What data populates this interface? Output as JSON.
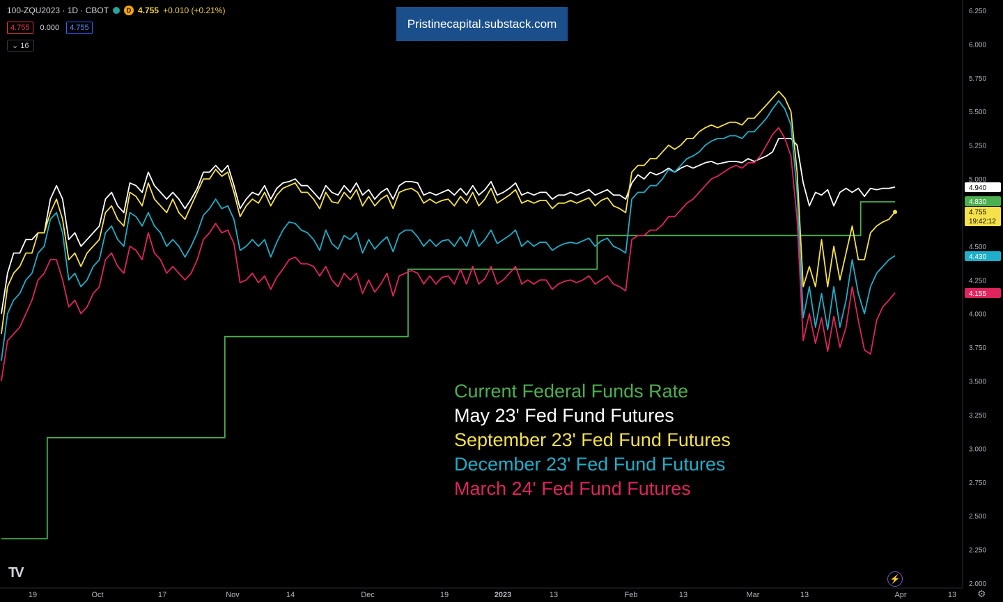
{
  "header": {
    "symbol": "100-ZQU2023 · 1D · CBOT",
    "exchange_badge": "D",
    "price": "4.755",
    "change": "+0.010 (+0.21%)",
    "bid": "4.755",
    "spread": "0.000",
    "ask": "4.755",
    "indicator_count": "16",
    "chevron": "⌄"
  },
  "watermark": {
    "text": "Pristinecapital.substack.com"
  },
  "legend": [
    {
      "label": "Current Federal Funds Rate",
      "color": "#4caf50"
    },
    {
      "label": "May 23' Fed Fund Futures",
      "color": "#ffffff"
    },
    {
      "label": "September 23' Fed Fund Futures",
      "color": "#f5e14a"
    },
    {
      "label": "December 23' Fed Fund Futures",
      "color": "#1eaec9"
    },
    {
      "label": "March 24' Fed Fund Futures",
      "color": "#e0245e"
    }
  ],
  "footer": {
    "tv_logo": "TV",
    "flash_icon": "⚡",
    "gear_icon": "⚙"
  },
  "chart_data": {
    "type": "line",
    "title": "100-ZQU2023 · 1D · CBOT",
    "ylim": [
      2.0,
      6.25
    ],
    "y_ticks": [
      "6.250",
      "6.000",
      "5.750",
      "5.500",
      "5.250",
      "5.000",
      "4.750",
      "4.500",
      "4.250",
      "4.000",
      "3.750",
      "3.500",
      "3.250",
      "3.000",
      "2.750",
      "2.500",
      "2.250",
      "2.000"
    ],
    "x_ticks": [
      "19",
      "Oct",
      "17",
      "Nov",
      "14",
      "Dec",
      "19",
      "2023",
      "13",
      "Feb",
      "13",
      "Mar",
      "13",
      "Apr",
      "13"
    ],
    "price_labels": [
      {
        "text": "4.940",
        "value": 4.94,
        "bg": "#ffffff",
        "fg": "#000000"
      },
      {
        "text": "4.830",
        "value": 4.83,
        "bg": "#4caf50",
        "fg": "#ffffff"
      },
      {
        "text": "4.755",
        "value": 4.755,
        "bg": "#f5e14a",
        "fg": "#000000",
        "sub": "19:42:12"
      },
      {
        "text": "4.430",
        "value": 4.43,
        "bg": "#1eaec9",
        "fg": "#ffffff"
      },
      {
        "text": "4.155",
        "value": 4.155,
        "bg": "#e0245e",
        "fg": "#ffffff"
      }
    ],
    "series": [
      {
        "name": "Current Federal Funds Rate",
        "color": "#4caf50",
        "step": true,
        "values": [
          2.33,
          2.33,
          2.33,
          2.33,
          2.33,
          2.33,
          2.33,
          2.33,
          3.08,
          3.08,
          3.08,
          3.08,
          3.08,
          3.08,
          3.08,
          3.08,
          3.08,
          3.08,
          3.08,
          3.08,
          3.08,
          3.08,
          3.08,
          3.08,
          3.08,
          3.08,
          3.08,
          3.08,
          3.08,
          3.08,
          3.08,
          3.08,
          3.08,
          3.08,
          3.08,
          3.08,
          3.08,
          3.08,
          3.08,
          3.83,
          3.83,
          3.83,
          3.83,
          3.83,
          3.83,
          3.83,
          3.83,
          3.83,
          3.83,
          3.83,
          3.83,
          3.83,
          3.83,
          3.83,
          3.83,
          3.83,
          3.83,
          3.83,
          3.83,
          3.83,
          3.83,
          3.83,
          3.83,
          3.83,
          3.83,
          3.83,
          3.83,
          3.83,
          3.83,
          3.83,
          3.83,
          4.33,
          4.33,
          4.33,
          4.33,
          4.33,
          4.33,
          4.33,
          4.33,
          4.33,
          4.33,
          4.33,
          4.33,
          4.33,
          4.33,
          4.33,
          4.33,
          4.33,
          4.33,
          4.33,
          4.33,
          4.33,
          4.33,
          4.33,
          4.33,
          4.33,
          4.33,
          4.33,
          4.33,
          4.33,
          4.33,
          4.33,
          4.33,
          4.33,
          4.58,
          4.58,
          4.58,
          4.58,
          4.58,
          4.58,
          4.58,
          4.58,
          4.58,
          4.58,
          4.58,
          4.58,
          4.58,
          4.58,
          4.58,
          4.58,
          4.58,
          4.58,
          4.58,
          4.58,
          4.58,
          4.58,
          4.58,
          4.58,
          4.58,
          4.58,
          4.58,
          4.58,
          4.58,
          4.58,
          4.58,
          4.58,
          4.58,
          4.58,
          4.58,
          4.58,
          4.58,
          4.58,
          4.58,
          4.58,
          4.58,
          4.58,
          4.58,
          4.58,
          4.58,
          4.58,
          4.83,
          4.83,
          4.83,
          4.83,
          4.83,
          4.83,
          4.83
        ]
      },
      {
        "name": "May 23' Fed Fund Futures",
        "color": "#ffffff",
        "values": [
          4.0,
          4.3,
          4.45,
          4.45,
          4.55,
          4.55,
          4.6,
          4.6,
          4.85,
          4.95,
          4.85,
          4.55,
          4.6,
          4.5,
          4.55,
          4.6,
          4.65,
          4.85,
          4.9,
          4.8,
          4.75,
          4.97,
          4.95,
          4.9,
          5.05,
          4.95,
          4.9,
          4.85,
          4.9,
          4.85,
          4.78,
          4.85,
          4.93,
          5.05,
          5.05,
          5.1,
          5.05,
          5.1,
          4.95,
          4.78,
          4.85,
          4.9,
          4.88,
          4.95,
          4.85,
          4.93,
          4.97,
          4.98,
          5.0,
          4.95,
          4.95,
          4.9,
          4.85,
          4.95,
          4.9,
          4.88,
          4.95,
          4.9,
          4.97,
          4.88,
          4.92,
          4.85,
          4.9,
          4.93,
          4.85,
          4.95,
          4.98,
          4.98,
          4.97,
          4.88,
          4.9,
          4.88,
          4.9,
          4.92,
          4.88,
          4.93,
          4.88,
          4.95,
          4.88,
          4.92,
          4.98,
          4.88,
          4.9,
          4.93,
          4.97,
          4.88,
          4.9,
          4.88,
          4.9,
          4.9,
          4.85,
          4.88,
          4.88,
          4.9,
          4.88,
          4.9,
          4.92,
          4.88,
          4.9,
          4.92,
          4.88,
          4.88,
          4.85,
          4.97,
          5.03,
          5.0,
          5.05,
          5.03,
          5.05,
          5.08,
          5.05,
          5.08,
          5.1,
          5.08,
          5.1,
          5.12,
          5.13,
          5.11,
          5.12,
          5.13,
          5.13,
          5.12,
          5.15,
          5.13,
          5.15,
          5.17,
          5.2,
          5.3,
          5.3,
          5.3,
          5.25,
          4.97,
          4.8,
          4.9,
          4.88,
          4.92,
          4.8,
          4.9,
          4.93,
          4.9,
          4.93,
          4.87,
          4.93,
          4.92,
          4.93,
          4.93,
          4.94
        ]
      },
      {
        "name": "September 23' Fed Fund Futures",
        "color": "#f5e14a",
        "values": [
          3.85,
          4.2,
          4.3,
          4.35,
          4.45,
          4.45,
          4.6,
          4.6,
          4.75,
          4.85,
          4.7,
          4.4,
          4.45,
          4.35,
          4.45,
          4.5,
          4.55,
          4.75,
          4.8,
          4.7,
          4.65,
          4.9,
          4.87,
          4.8,
          4.97,
          4.85,
          4.8,
          4.75,
          4.85,
          4.75,
          4.7,
          4.8,
          4.9,
          5.0,
          5.0,
          5.07,
          5.02,
          5.05,
          4.9,
          4.72,
          4.8,
          4.85,
          4.82,
          4.9,
          4.8,
          4.88,
          4.93,
          4.95,
          4.97,
          4.9,
          4.9,
          4.85,
          4.78,
          4.9,
          4.83,
          4.82,
          4.9,
          4.85,
          4.92,
          4.8,
          4.87,
          4.8,
          4.85,
          4.88,
          4.78,
          4.9,
          4.92,
          4.93,
          4.9,
          4.82,
          4.85,
          4.82,
          4.84,
          4.85,
          4.8,
          4.87,
          4.82,
          4.9,
          4.8,
          4.85,
          4.93,
          4.82,
          4.85,
          4.88,
          4.92,
          4.82,
          4.84,
          4.82,
          4.84,
          4.84,
          4.78,
          4.82,
          4.82,
          4.84,
          4.82,
          4.84,
          4.86,
          4.8,
          4.84,
          4.86,
          4.8,
          4.78,
          4.75,
          5.05,
          5.1,
          5.1,
          5.15,
          5.15,
          5.2,
          5.25,
          5.22,
          5.25,
          5.3,
          5.3,
          5.35,
          5.38,
          5.4,
          5.38,
          5.4,
          5.42,
          5.42,
          5.4,
          5.45,
          5.45,
          5.5,
          5.55,
          5.6,
          5.65,
          5.6,
          5.5,
          5.05,
          4.2,
          4.35,
          4.2,
          4.55,
          4.2,
          4.5,
          4.25,
          4.45,
          4.65,
          4.4,
          4.4,
          4.6,
          4.65,
          4.68,
          4.7,
          4.755
        ]
      },
      {
        "name": "December 23' Fed Fund Futures",
        "color": "#1eaec9",
        "values": [
          3.65,
          4.0,
          4.1,
          4.15,
          4.25,
          4.3,
          4.45,
          4.5,
          4.7,
          4.75,
          4.6,
          4.25,
          4.3,
          4.2,
          4.25,
          4.35,
          4.4,
          4.6,
          4.65,
          4.55,
          4.5,
          4.75,
          4.72,
          4.65,
          4.75,
          4.65,
          4.6,
          4.5,
          4.55,
          4.5,
          4.42,
          4.5,
          4.6,
          4.73,
          4.78,
          4.85,
          4.78,
          4.8,
          4.7,
          4.47,
          4.5,
          4.55,
          4.5,
          4.55,
          4.42,
          4.53,
          4.62,
          4.68,
          4.67,
          4.62,
          4.6,
          4.55,
          4.47,
          4.62,
          4.52,
          4.48,
          4.58,
          4.55,
          4.6,
          4.45,
          4.55,
          4.48,
          4.53,
          4.57,
          4.46,
          4.59,
          4.62,
          4.62,
          4.57,
          4.5,
          4.55,
          4.5,
          4.54,
          4.55,
          4.5,
          4.57,
          4.5,
          4.62,
          4.5,
          4.55,
          4.62,
          4.52,
          4.55,
          4.58,
          4.62,
          4.5,
          4.54,
          4.5,
          4.53,
          4.53,
          4.47,
          4.5,
          4.52,
          4.53,
          4.52,
          4.54,
          4.56,
          4.5,
          4.54,
          4.56,
          4.5,
          4.48,
          4.45,
          4.85,
          4.9,
          4.9,
          4.95,
          4.95,
          5.0,
          5.07,
          5.05,
          5.1,
          5.15,
          5.17,
          5.2,
          5.25,
          5.28,
          5.3,
          5.3,
          5.32,
          5.32,
          5.3,
          5.35,
          5.35,
          5.4,
          5.45,
          5.52,
          5.58,
          5.52,
          5.4,
          4.9,
          3.97,
          4.2,
          3.9,
          4.15,
          3.88,
          4.2,
          3.9,
          4.1,
          4.4,
          4.15,
          4.0,
          4.2,
          4.3,
          4.35,
          4.4,
          4.43
        ]
      },
      {
        "name": "March 24' Fed Fund Futures",
        "color": "#e0245e",
        "values": [
          3.5,
          3.8,
          3.85,
          3.9,
          4.0,
          4.1,
          4.25,
          4.3,
          4.4,
          4.4,
          4.25,
          4.05,
          4.1,
          4.0,
          4.05,
          4.15,
          4.2,
          4.4,
          4.45,
          4.35,
          4.3,
          4.5,
          4.47,
          4.4,
          4.6,
          4.45,
          4.4,
          4.3,
          4.35,
          4.3,
          4.25,
          4.3,
          4.4,
          4.55,
          4.6,
          4.67,
          4.6,
          4.62,
          4.52,
          4.23,
          4.25,
          4.3,
          4.23,
          4.28,
          4.18,
          4.27,
          4.33,
          4.4,
          4.42,
          4.37,
          4.37,
          4.35,
          4.28,
          4.35,
          4.25,
          4.2,
          4.3,
          4.25,
          4.3,
          4.15,
          4.25,
          4.16,
          4.22,
          4.3,
          4.13,
          4.28,
          4.3,
          4.32,
          4.3,
          4.22,
          4.28,
          4.22,
          4.27,
          4.28,
          4.22,
          4.33,
          4.22,
          4.35,
          4.22,
          4.26,
          4.35,
          4.22,
          4.25,
          4.3,
          4.35,
          4.22,
          4.25,
          4.22,
          4.25,
          4.25,
          4.18,
          4.22,
          4.24,
          4.25,
          4.23,
          4.25,
          4.28,
          4.22,
          4.25,
          4.28,
          4.22,
          4.2,
          4.17,
          4.55,
          4.58,
          4.58,
          4.62,
          4.62,
          4.66,
          4.72,
          4.72,
          4.77,
          4.82,
          4.85,
          4.9,
          4.95,
          5.0,
          5.02,
          5.05,
          5.08,
          5.1,
          5.08,
          5.12,
          5.12,
          5.17,
          5.25,
          5.33,
          5.38,
          5.3,
          5.17,
          4.7,
          3.8,
          4.0,
          3.78,
          3.97,
          3.72,
          3.98,
          3.75,
          3.9,
          4.2,
          3.95,
          3.73,
          3.7,
          3.95,
          4.05,
          4.1,
          4.155
        ]
      }
    ]
  }
}
